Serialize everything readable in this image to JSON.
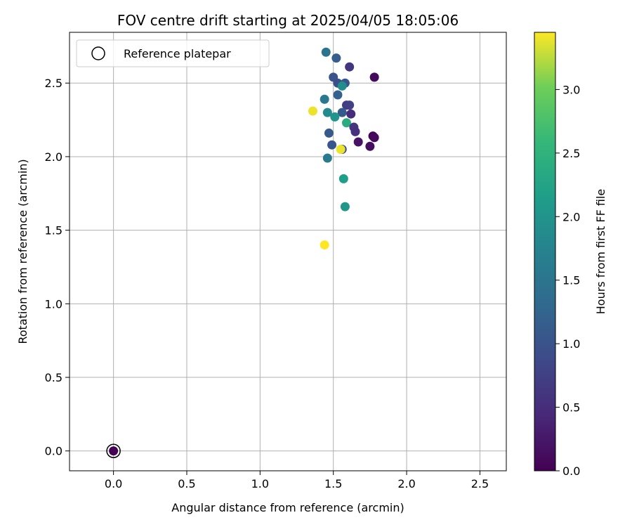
{
  "chart_data": {
    "type": "scatter",
    "title": "FOV centre drift starting at 2025/04/05 18:05:06",
    "xlabel": "Angular distance from reference (arcmin)",
    "ylabel": "Rotation from reference (arcmin)",
    "xlim": [
      -0.3,
      2.68
    ],
    "ylim": [
      -0.135,
      2.845
    ],
    "xticks": [
      0.0,
      0.5,
      1.0,
      1.5,
      2.0,
      2.5
    ],
    "yticks": [
      0.0,
      0.5,
      1.0,
      1.5,
      2.0,
      2.5
    ],
    "xtick_labels": [
      "0.0",
      "0.5",
      "1.0",
      "1.5",
      "2.0",
      "2.5"
    ],
    "ytick_labels": [
      "0.0",
      "0.5",
      "1.0",
      "1.5",
      "2.0",
      "2.5"
    ],
    "grid": true,
    "legend": {
      "position": "top-left",
      "entries": [
        "Reference platepar"
      ]
    },
    "colorbar": {
      "label": "Hours from first FF file",
      "range": [
        0.0,
        3.45
      ],
      "ticks": [
        0.0,
        0.5,
        1.0,
        1.5,
        2.0,
        2.5,
        3.0
      ],
      "tick_labels": [
        "0.0",
        "0.5",
        "1.0",
        "1.5",
        "2.0",
        "2.5",
        "3.0"
      ],
      "colormap": "viridis"
    },
    "reference_point": {
      "x": 0.0,
      "y": 0.0,
      "hours": 0.0
    },
    "points": [
      {
        "x": 1.45,
        "y": 2.71,
        "hours": 1.5
      },
      {
        "x": 1.52,
        "y": 2.67,
        "hours": 1.15
      },
      {
        "x": 1.61,
        "y": 2.61,
        "hours": 0.6
      },
      {
        "x": 1.78,
        "y": 2.54,
        "hours": 0.1
      },
      {
        "x": 1.5,
        "y": 2.54,
        "hours": 1.0
      },
      {
        "x": 1.53,
        "y": 2.5,
        "hours": 0.95
      },
      {
        "x": 1.58,
        "y": 2.5,
        "hours": 1.05
      },
      {
        "x": 1.56,
        "y": 2.48,
        "hours": 1.9
      },
      {
        "x": 1.53,
        "y": 2.42,
        "hours": 1.2
      },
      {
        "x": 1.44,
        "y": 2.39,
        "hours": 1.55
      },
      {
        "x": 1.59,
        "y": 2.35,
        "hours": 0.7
      },
      {
        "x": 1.61,
        "y": 2.35,
        "hours": 0.75
      },
      {
        "x": 1.36,
        "y": 2.31,
        "hours": 3.4
      },
      {
        "x": 1.46,
        "y": 2.3,
        "hours": 1.85
      },
      {
        "x": 1.56,
        "y": 2.3,
        "hours": 1.1
      },
      {
        "x": 1.62,
        "y": 2.29,
        "hours": 0.5
      },
      {
        "x": 1.51,
        "y": 2.27,
        "hours": 2.0
      },
      {
        "x": 1.59,
        "y": 2.23,
        "hours": 2.4
      },
      {
        "x": 1.64,
        "y": 2.2,
        "hours": 0.6
      },
      {
        "x": 1.65,
        "y": 2.17,
        "hours": 0.55
      },
      {
        "x": 1.47,
        "y": 2.16,
        "hours": 1.1
      },
      {
        "x": 1.77,
        "y": 2.14,
        "hours": 0.05
      },
      {
        "x": 1.78,
        "y": 2.13,
        "hours": 0.1
      },
      {
        "x": 1.67,
        "y": 2.1,
        "hours": 0.2
      },
      {
        "x": 1.49,
        "y": 2.08,
        "hours": 1.05
      },
      {
        "x": 1.75,
        "y": 2.07,
        "hours": 0.15
      },
      {
        "x": 1.56,
        "y": 2.05,
        "hours": 0.95
      },
      {
        "x": 1.55,
        "y": 2.05,
        "hours": 3.4
      },
      {
        "x": 1.46,
        "y": 1.99,
        "hours": 1.6
      },
      {
        "x": 1.57,
        "y": 1.85,
        "hours": 2.15
      },
      {
        "x": 1.58,
        "y": 1.66,
        "hours": 2.05
      },
      {
        "x": 1.44,
        "y": 1.4,
        "hours": 3.45
      }
    ]
  }
}
